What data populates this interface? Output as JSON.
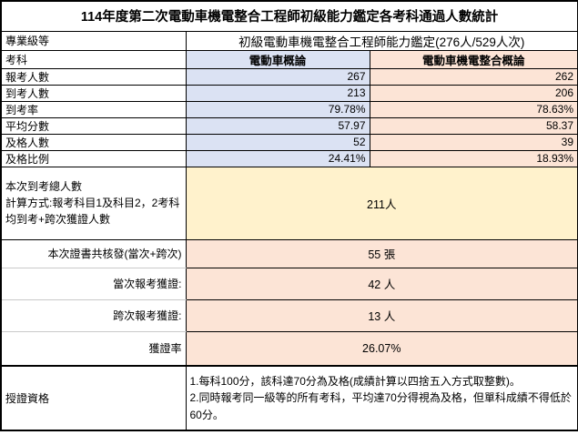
{
  "title": "114年度第二次電動車機電整合工程師初級能力鑑定各考科通過人數統計",
  "colors": {
    "header_blue": "#dbe2f3",
    "header_peach": "#fce4d6",
    "highlight_yellow": "#fff2cc",
    "border_black": "#000000",
    "gridline_gray": "#c9c9c9"
  },
  "level_row": {
    "label": "專業級等",
    "value": "初級電動車機電整合工程師能力鑑定(276人/529人次)"
  },
  "subject_header": {
    "label": "考科",
    "col1": "電動車概論",
    "col2": "電動車機電整合概論"
  },
  "stats_rows": [
    {
      "label": "報考人數",
      "col1": "267",
      "col2": "262"
    },
    {
      "label": "到考人數",
      "col1": "213",
      "col2": "206"
    },
    {
      "label": "到考率",
      "col1": "79.78%",
      "col2": "78.63%"
    },
    {
      "label": "平均分數",
      "col1": "57.97",
      "col2": "58.37"
    },
    {
      "label": "及格人數",
      "col1": "52",
      "col2": "39"
    },
    {
      "label": "及格比例",
      "col1": "24.41%",
      "col2": "18.93%"
    }
  ],
  "attendance_total": {
    "label_line1": "本次到考總人數",
    "label_line2": "計算方式:報考科目1及科目2，2考科均到考+跨次獲證人數",
    "value": "211人"
  },
  "cert_rows": [
    {
      "label": "本次證書共核發(當次+跨次)",
      "value": "55 張"
    },
    {
      "label": "當次報考獲證:",
      "value": "42 人"
    },
    {
      "label": "跨次報考獲證:",
      "value": "13 人"
    },
    {
      "label": "獲證率",
      "value": "26.07%"
    }
  ],
  "qualification": {
    "label": "授證資格",
    "note_line1": "1.每科100分，該科達70分為及格(成績計算以四捨五入方式取整數)。",
    "note_line2": "2.同時報考同一級等的所有考科，平均達70分得視為及格，但單科成績不得低於60分。"
  }
}
